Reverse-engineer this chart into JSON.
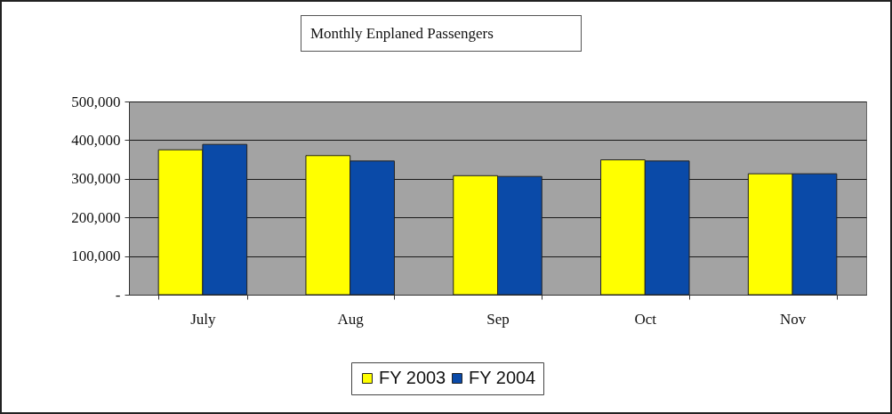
{
  "chart_data": {
    "type": "bar",
    "title": "Monthly Enplaned Passengers",
    "categories": [
      "July",
      "Aug",
      "Sep",
      "Oct",
      "Nov"
    ],
    "series": [
      {
        "name": "FY 2003",
        "color": "#ffff00",
        "values": [
          375000,
          360000,
          308000,
          349000,
          313000
        ]
      },
      {
        "name": "FY 2004",
        "color": "#0a4aa8",
        "values": [
          389000,
          346000,
          306000,
          346000,
          313000
        ]
      }
    ],
    "ylim": [
      0,
      500000
    ],
    "yticks": [
      {
        "value": 0,
        "label": "-"
      },
      {
        "value": 100000,
        "label": "100,000"
      },
      {
        "value": 200000,
        "label": "200,000"
      },
      {
        "value": 300000,
        "label": "300,000"
      },
      {
        "value": 400000,
        "label": "400,000"
      },
      {
        "value": 500000,
        "label": "500,000"
      }
    ],
    "grid": "y",
    "legend": "bottom"
  }
}
